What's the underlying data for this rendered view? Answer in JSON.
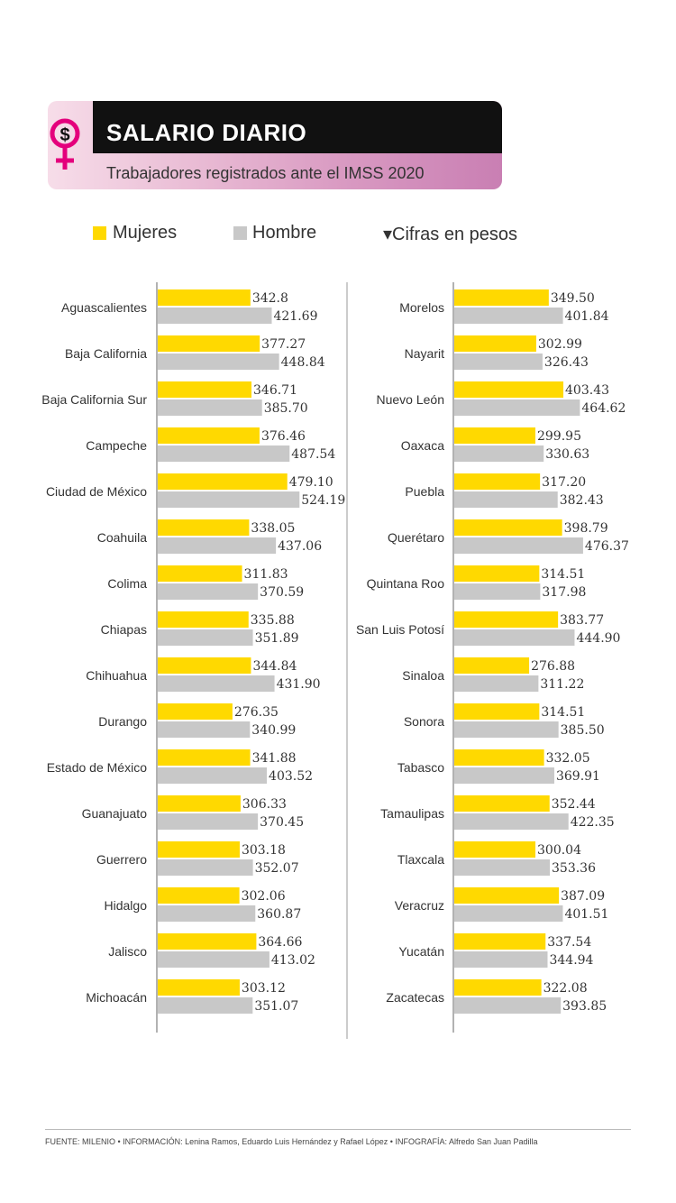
{
  "header": {
    "title": "SALARIO DIARIO",
    "subtitle": "Trabajadores registrados ante el IMSS 2020",
    "icon": "dollar-female-icon"
  },
  "legend": {
    "women_label": "Mujeres",
    "men_label": "Hombre",
    "units_note": "▾Cifras en pesos"
  },
  "colors": {
    "women": "#FFD900",
    "men": "#C8C8C8",
    "accent": "#E4007C"
  },
  "chart_data": {
    "type": "bar",
    "orientation": "horizontal",
    "series": [
      {
        "name": "Mujeres",
        "values": [
          342.8,
          377.27,
          346.71,
          376.46,
          479.1,
          338.05,
          311.83,
          335.88,
          344.84,
          276.35,
          341.88,
          306.33,
          303.18,
          302.06,
          364.66,
          303.12,
          349.5,
          302.99,
          403.43,
          299.95,
          317.2,
          398.79,
          314.51,
          383.77,
          276.88,
          314.51,
          332.05,
          352.44,
          300.04,
          387.09,
          337.54,
          322.08
        ]
      },
      {
        "name": "Hombre",
        "values": [
          421.69,
          448.84,
          385.7,
          487.54,
          524.19,
          437.06,
          370.59,
          351.89,
          431.9,
          340.99,
          403.52,
          370.45,
          352.07,
          360.87,
          413.02,
          351.07,
          401.84,
          326.43,
          464.62,
          330.63,
          382.43,
          476.37,
          317.98,
          444.9,
          311.22,
          385.5,
          369.91,
          422.35,
          353.36,
          401.51,
          344.94,
          393.85
        ]
      }
    ],
    "categories": [
      "Aguascalientes",
      "Baja California",
      "Baja California Sur",
      "Campeche",
      "Ciudad de México",
      "Coahuila",
      "Colima",
      "Chiapas",
      "Chihuahua",
      "Durango",
      "Estado de México",
      "Guanajuato",
      "Guerrero",
      "Hidalgo",
      "Jalisco",
      "Michoacán",
      "Morelos",
      "Nayarit",
      "Nuevo León",
      "Oaxaca",
      "Puebla",
      "Querétaro",
      "Quintana Roo",
      "San Luis Potosí",
      "Sinaloa",
      "Sonora",
      "Tabasco",
      "Tamaulipas",
      "Tlaxcala",
      "Veracruz",
      "Yucatán",
      "Zacatecas"
    ],
    "women_labels": [
      "342.8",
      "377.27",
      "346.71",
      "376.46",
      "479.10",
      "338.05",
      "311.83",
      "335.88",
      "344.84",
      "276.35",
      "341.88",
      "306.33",
      "303.18",
      "302.06",
      "364.66",
      "303.12",
      "349.50",
      "302.99",
      "403.43",
      "299.95",
      "317.20",
      "398.79",
      "314.51",
      "383.77",
      "276.88",
      "314.51",
      "332.05",
      "352.44",
      "300.04",
      "387.09",
      "337.54",
      "322.08"
    ],
    "men_labels": [
      "421.69",
      "448.84",
      "385.70",
      "487.54",
      "524.19",
      "437.06",
      "370.59",
      "351.89",
      "431.90",
      "340.99",
      "403.52",
      "370.45",
      "352.07",
      "360.87",
      "413.02",
      "351.07",
      "401.84",
      "326.43",
      "464.62",
      "330.63",
      "382.43",
      "476.37",
      "317.98",
      "444.90",
      "311.22",
      "385.50",
      "369.91",
      "422.35",
      "353.36",
      "401.51",
      "344.94",
      "393.85"
    ],
    "panels": 2,
    "rows_per_panel": 16,
    "grid": false
  },
  "footer": {
    "credits": "FUENTE: MILENIO • INFORMACIÓN: Lenina Ramos, Eduardo Luis Hernández y Rafael López • INFOGRAFÍA: Alfredo San Juan Padilla"
  }
}
